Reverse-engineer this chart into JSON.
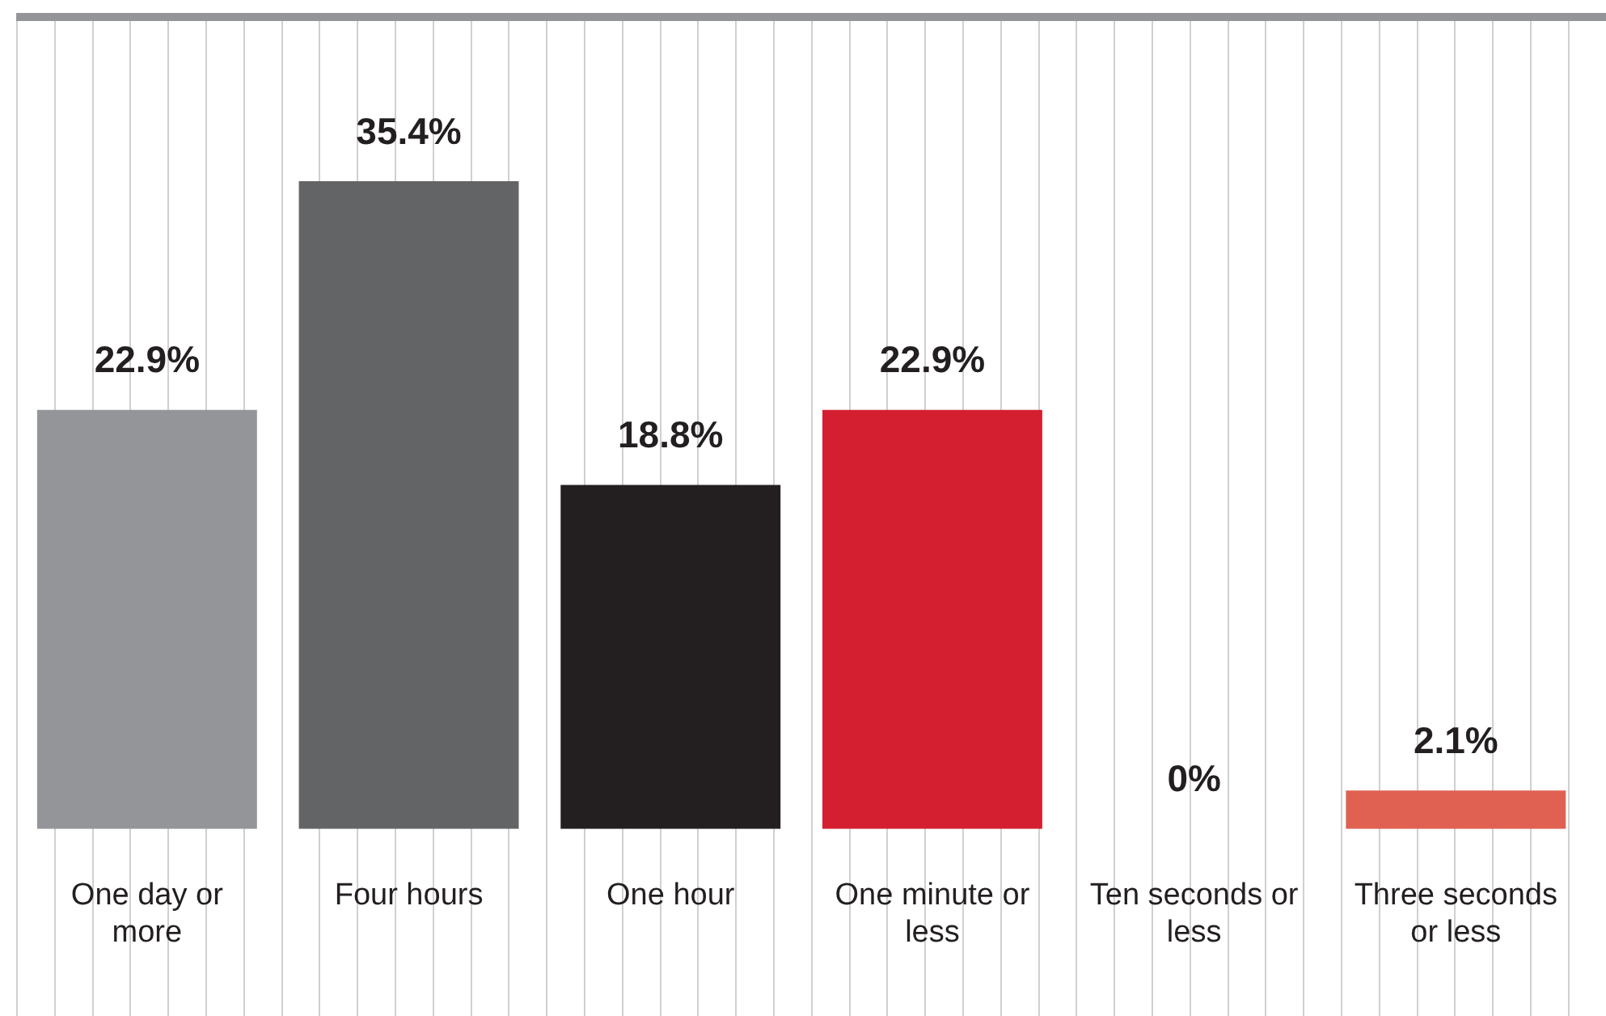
{
  "chart_data": {
    "type": "bar",
    "categories": [
      "One day or more",
      "Four hours",
      "One hour",
      "One minute or less",
      "Ten seconds or less",
      "Three seconds or less"
    ],
    "values": [
      22.9,
      35.4,
      18.8,
      22.9,
      0,
      2.1
    ],
    "colors": [
      "#939598",
      "#636466",
      "#231f20",
      "#d41f30",
      "#d41f30",
      "#e06151"
    ],
    "value_labels": [
      "22.9%",
      "35.4%",
      "18.8%",
      "22.9%",
      "0%",
      "2.1%"
    ],
    "grid": false,
    "legend": false
  }
}
